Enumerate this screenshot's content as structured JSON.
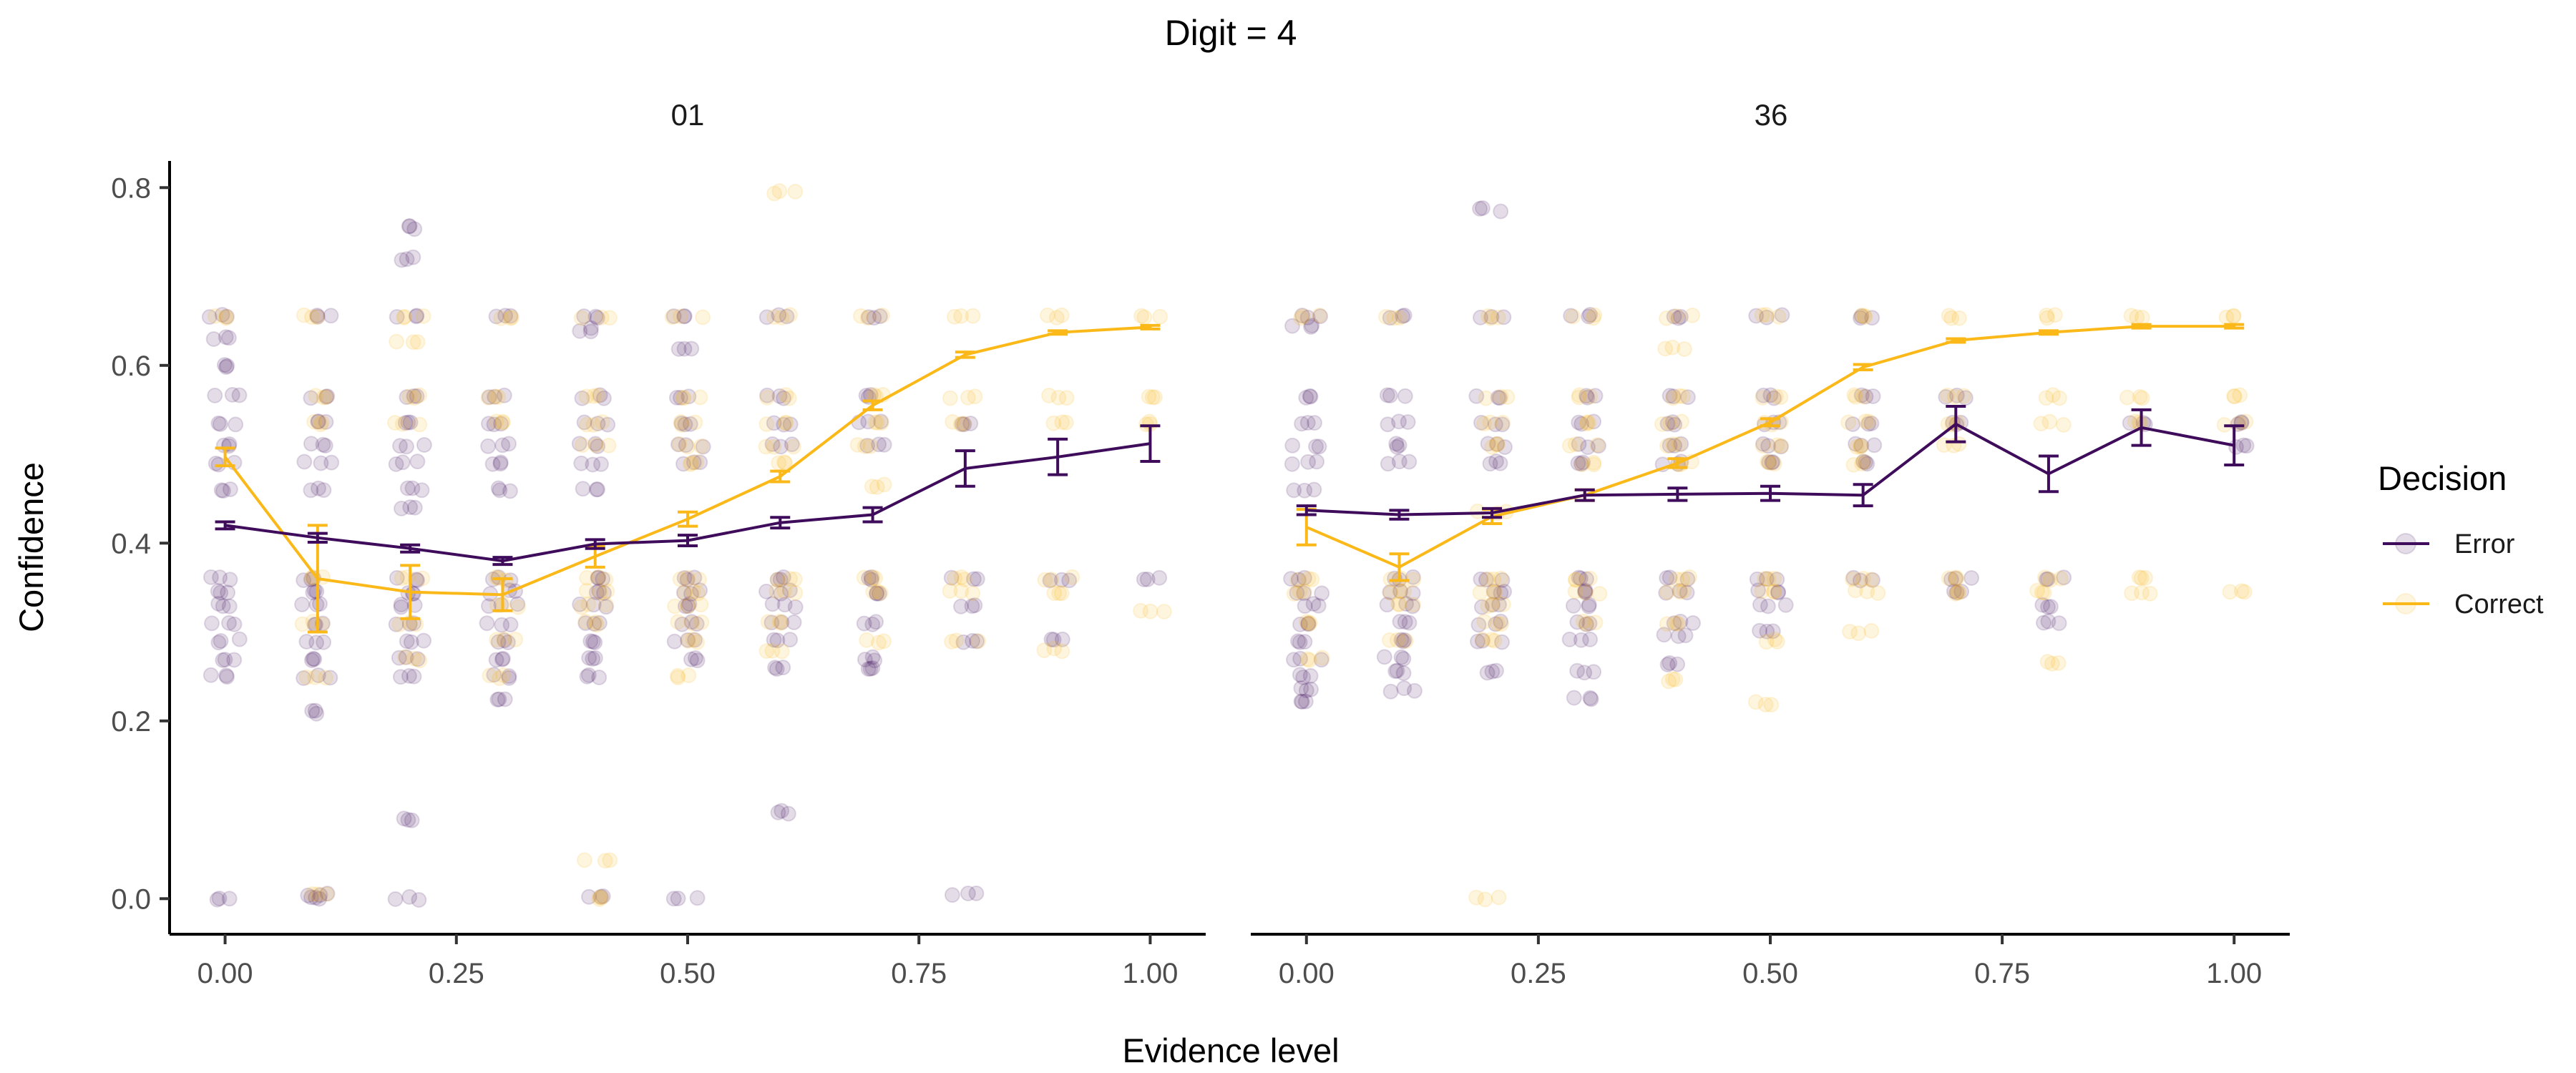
{
  "chart_data": {
    "type": "scatter",
    "title": "Digit = 4",
    "xlabel": "Evidence level",
    "ylabel": "Confidence",
    "xlim": [
      -0.06,
      1.06
    ],
    "ylim": [
      -0.04,
      0.83
    ],
    "xticks": [
      "0.00",
      "0.25",
      "0.50",
      "0.75",
      "1.00"
    ],
    "yticks": [
      "0.0",
      "0.2",
      "0.4",
      "0.6",
      "0.8"
    ],
    "grid": false,
    "legend": {
      "title": "Decision",
      "position": "right",
      "items": [
        {
          "label": "Error",
          "color": "#3f0c5c"
        },
        {
          "label": "Correct",
          "color": "#fbb919"
        }
      ]
    },
    "colors": {
      "Error": "#3f0c5c",
      "Correct": "#fbb919"
    },
    "x": [
      0.0,
      0.1,
      0.2,
      0.3,
      0.4,
      0.5,
      0.6,
      0.7,
      0.8,
      0.9,
      1.0
    ],
    "panels": [
      {
        "label": "01",
        "series": [
          {
            "name": "Error",
            "mean": [
              0.42,
              0.406,
              0.394,
              0.38,
              0.399,
              0.403,
              0.423,
              0.432,
              0.484,
              0.497,
              0.512
            ],
            "se": [
              0.004,
              0.005,
              0.004,
              0.004,
              0.005,
              0.006,
              0.006,
              0.008,
              0.02,
              0.02,
              0.02
            ]
          },
          {
            "name": "Correct",
            "mean": [
              0.497,
              0.36,
              0.345,
              0.342,
              0.385,
              0.427,
              0.475,
              0.555,
              0.612,
              0.637,
              0.643
            ],
            "se": [
              0.01,
              0.06,
              0.03,
              0.018,
              0.012,
              0.008,
              0.006,
              0.005,
              0.003,
              0.002,
              0.002
            ]
          }
        ]
      },
      {
        "label": "36",
        "series": [
          {
            "name": "Error",
            "mean": [
              0.437,
              0.432,
              0.434,
              0.454,
              0.455,
              0.456,
              0.454,
              0.534,
              0.478,
              0.53,
              0.51
            ],
            "se": [
              0.005,
              0.005,
              0.005,
              0.006,
              0.007,
              0.008,
              0.012,
              0.02,
              0.02,
              0.02,
              0.022
            ]
          },
          {
            "name": "Correct",
            "mean": [
              0.418,
              0.373,
              0.43,
              0.454,
              0.49,
              0.536,
              0.598,
              0.628,
              0.637,
              0.644,
              0.644
            ],
            "se": [
              0.02,
              0.015,
              0.008,
              0.006,
              0.005,
              0.004,
              0.003,
              0.002,
              0.002,
              0.002,
              0.002
            ]
          }
        ]
      }
    ],
    "raw_confidence_levels_observed": [
      0.0,
      0.003,
      0.09,
      0.21,
      0.22,
      0.25,
      0.27,
      0.29,
      0.31,
      0.33,
      0.34,
      0.36,
      0.46,
      0.49,
      0.51,
      0.535,
      0.565,
      0.62,
      0.655,
      0.72,
      0.75,
      0.78,
      0.795
    ],
    "raw_points": [
      {
        "panel": 0,
        "group": "Error",
        "x": 0.0,
        "y": [
          0.0,
          0.25,
          0.27,
          0.29,
          0.31,
          0.33,
          0.345,
          0.36,
          0.46,
          0.49,
          0.51,
          0.535,
          0.565,
          0.6,
          0.63,
          0.655
        ]
      },
      {
        "panel": 0,
        "group": "Error",
        "x": 0.1,
        "y": [
          0.0,
          0.005,
          0.21,
          0.25,
          0.27,
          0.29,
          0.31,
          0.33,
          0.345,
          0.36,
          0.46,
          0.49,
          0.51,
          0.535,
          0.565,
          0.655
        ]
      },
      {
        "panel": 0,
        "group": "Error",
        "x": 0.2,
        "y": [
          0.0,
          0.09,
          0.25,
          0.27,
          0.29,
          0.31,
          0.33,
          0.345,
          0.36,
          0.44,
          0.46,
          0.49,
          0.51,
          0.535,
          0.565,
          0.655,
          0.72,
          0.755
        ]
      },
      {
        "panel": 0,
        "group": "Error",
        "x": 0.3,
        "y": [
          0.225,
          0.25,
          0.27,
          0.29,
          0.31,
          0.33,
          0.345,
          0.36,
          0.46,
          0.49,
          0.51,
          0.535,
          0.565,
          0.655
        ]
      },
      {
        "panel": 0,
        "group": "Error",
        "x": 0.4,
        "y": [
          0.003,
          0.25,
          0.27,
          0.29,
          0.31,
          0.33,
          0.345,
          0.36,
          0.46,
          0.49,
          0.51,
          0.535,
          0.565,
          0.64,
          0.655
        ]
      },
      {
        "panel": 0,
        "group": "Error",
        "x": 0.5,
        "y": [
          0.0,
          0.27,
          0.29,
          0.31,
          0.33,
          0.345,
          0.36,
          0.49,
          0.51,
          0.535,
          0.565,
          0.62,
          0.655
        ]
      },
      {
        "panel": 0,
        "group": "Error",
        "x": 0.6,
        "y": [
          0.097,
          0.26,
          0.29,
          0.31,
          0.33,
          0.345,
          0.36,
          0.51,
          0.535,
          0.565,
          0.655
        ]
      },
      {
        "panel": 0,
        "group": "Error",
        "x": 0.7,
        "y": [
          0.26,
          0.27,
          0.31,
          0.345,
          0.36,
          0.51,
          0.535,
          0.565,
          0.655
        ]
      },
      {
        "panel": 0,
        "group": "Error",
        "x": 0.8,
        "y": [
          0.005,
          0.29,
          0.33,
          0.36,
          0.535
        ]
      },
      {
        "panel": 0,
        "group": "Error",
        "x": 0.9,
        "y": [
          0.29,
          0.36
        ]
      },
      {
        "panel": 0,
        "group": "Error",
        "x": 1.0,
        "y": [
          0.36
        ]
      },
      {
        "panel": 0,
        "group": "Correct",
        "x": 0.0,
        "y": [
          0.655
        ]
      },
      {
        "panel": 0,
        "group": "Correct",
        "x": 0.1,
        "y": [
          0.005,
          0.25,
          0.31,
          0.36,
          0.535,
          0.565,
          0.655
        ]
      },
      {
        "panel": 0,
        "group": "Correct",
        "x": 0.2,
        "y": [
          0.27,
          0.31,
          0.36,
          0.535,
          0.565,
          0.625,
          0.655
        ]
      },
      {
        "panel": 0,
        "group": "Correct",
        "x": 0.3,
        "y": [
          0.25,
          0.29,
          0.33,
          0.36,
          0.535,
          0.565,
          0.655
        ]
      },
      {
        "panel": 0,
        "group": "Correct",
        "x": 0.4,
        "y": [
          0.0,
          0.043,
          0.31,
          0.33,
          0.345,
          0.36,
          0.51,
          0.535,
          0.565,
          0.655
        ]
      },
      {
        "panel": 0,
        "group": "Correct",
        "x": 0.5,
        "y": [
          0.25,
          0.29,
          0.31,
          0.33,
          0.345,
          0.36,
          0.49,
          0.51,
          0.535,
          0.565,
          0.655
        ]
      },
      {
        "panel": 0,
        "group": "Correct",
        "x": 0.6,
        "y": [
          0.28,
          0.31,
          0.345,
          0.36,
          0.49,
          0.51,
          0.535,
          0.565,
          0.655,
          0.795
        ]
      },
      {
        "panel": 0,
        "group": "Correct",
        "x": 0.7,
        "y": [
          0.29,
          0.345,
          0.36,
          0.465,
          0.51,
          0.535,
          0.565,
          0.655
        ]
      },
      {
        "panel": 0,
        "group": "Correct",
        "x": 0.8,
        "y": [
          0.29,
          0.345,
          0.36,
          0.535,
          0.565,
          0.655
        ]
      },
      {
        "panel": 0,
        "group": "Correct",
        "x": 0.9,
        "y": [
          0.28,
          0.345,
          0.36,
          0.535,
          0.565,
          0.655
        ]
      },
      {
        "panel": 0,
        "group": "Correct",
        "x": 1.0,
        "y": [
          0.325,
          0.535,
          0.565,
          0.655
        ]
      },
      {
        "panel": 1,
        "group": "Error",
        "x": 0.0,
        "y": [
          0.22,
          0.235,
          0.25,
          0.27,
          0.29,
          0.31,
          0.33,
          0.345,
          0.36,
          0.46,
          0.49,
          0.51,
          0.535,
          0.565,
          0.645,
          0.655
        ]
      },
      {
        "panel": 1,
        "group": "Error",
        "x": 0.1,
        "y": [
          0.235,
          0.255,
          0.27,
          0.29,
          0.31,
          0.33,
          0.345,
          0.36,
          0.49,
          0.51,
          0.535,
          0.565,
          0.655
        ]
      },
      {
        "panel": 1,
        "group": "Error",
        "x": 0.2,
        "y": [
          0.255,
          0.29,
          0.31,
          0.33,
          0.345,
          0.36,
          0.49,
          0.51,
          0.535,
          0.565,
          0.655,
          0.775
        ]
      },
      {
        "panel": 1,
        "group": "Error",
        "x": 0.3,
        "y": [
          0.225,
          0.255,
          0.29,
          0.31,
          0.33,
          0.345,
          0.36,
          0.49,
          0.51,
          0.535,
          0.565,
          0.655
        ]
      },
      {
        "panel": 1,
        "group": "Error",
        "x": 0.4,
        "y": [
          0.265,
          0.295,
          0.31,
          0.345,
          0.36,
          0.49,
          0.51,
          0.535,
          0.565,
          0.655
        ]
      },
      {
        "panel": 1,
        "group": "Error",
        "x": 0.5,
        "y": [
          0.3,
          0.33,
          0.345,
          0.36,
          0.49,
          0.51,
          0.535,
          0.565,
          0.655
        ]
      },
      {
        "panel": 1,
        "group": "Error",
        "x": 0.6,
        "y": [
          0.36,
          0.49,
          0.51,
          0.535,
          0.565,
          0.655
        ]
      },
      {
        "panel": 1,
        "group": "Error",
        "x": 0.7,
        "y": [
          0.345,
          0.36,
          0.535,
          0.565
        ]
      },
      {
        "panel": 1,
        "group": "Error",
        "x": 0.8,
        "y": [
          0.31,
          0.33,
          0.36
        ]
      },
      {
        "panel": 1,
        "group": "Error",
        "x": 0.9,
        "y": [
          0.535
        ]
      },
      {
        "panel": 1,
        "group": "Error",
        "x": 1.0,
        "y": [
          0.51,
          0.535
        ]
      },
      {
        "panel": 1,
        "group": "Correct",
        "x": 0.0,
        "y": [
          0.27,
          0.31,
          0.345,
          0.36,
          0.655
        ]
      },
      {
        "panel": 1,
        "group": "Correct",
        "x": 0.1,
        "y": [
          0.29,
          0.33,
          0.345,
          0.36,
          0.655
        ]
      },
      {
        "panel": 1,
        "group": "Correct",
        "x": 0.2,
        "y": [
          0.0,
          0.29,
          0.31,
          0.33,
          0.345,
          0.36,
          0.435,
          0.51,
          0.535,
          0.565,
          0.655
        ]
      },
      {
        "panel": 1,
        "group": "Correct",
        "x": 0.3,
        "y": [
          0.31,
          0.345,
          0.36,
          0.49,
          0.51,
          0.535,
          0.565,
          0.655
        ]
      },
      {
        "panel": 1,
        "group": "Correct",
        "x": 0.4,
        "y": [
          0.245,
          0.31,
          0.345,
          0.36,
          0.49,
          0.51,
          0.535,
          0.565,
          0.62,
          0.655
        ]
      },
      {
        "panel": 1,
        "group": "Correct",
        "x": 0.5,
        "y": [
          0.22,
          0.29,
          0.345,
          0.36,
          0.49,
          0.51,
          0.535,
          0.565,
          0.655
        ]
      },
      {
        "panel": 1,
        "group": "Correct",
        "x": 0.6,
        "y": [
          0.3,
          0.345,
          0.36,
          0.49,
          0.51,
          0.535,
          0.565,
          0.655
        ]
      },
      {
        "panel": 1,
        "group": "Correct",
        "x": 0.7,
        "y": [
          0.345,
          0.36,
          0.51,
          0.535,
          0.565,
          0.655
        ]
      },
      {
        "panel": 1,
        "group": "Correct",
        "x": 0.8,
        "y": [
          0.265,
          0.345,
          0.36,
          0.535,
          0.565,
          0.655
        ]
      },
      {
        "panel": 1,
        "group": "Correct",
        "x": 0.9,
        "y": [
          0.345,
          0.36,
          0.535,
          0.565,
          0.655
        ]
      },
      {
        "panel": 1,
        "group": "Correct",
        "x": 1.0,
        "y": [
          0.345,
          0.535,
          0.565,
          0.655
        ]
      }
    ]
  }
}
